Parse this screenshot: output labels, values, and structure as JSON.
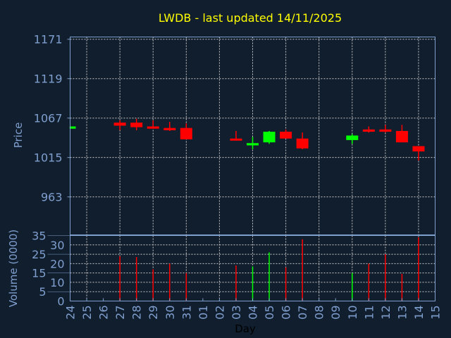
{
  "chart_data": [
    {
      "type": "candlestick",
      "title": "LWDB - last updated 14/11/2025",
      "ylabel": "Price",
      "xlabel": "Day",
      "ylim": [
        913,
        1174
      ],
      "y_ticks": [
        963,
        1015,
        1067,
        1119,
        1171
      ],
      "grid": true,
      "colors": {
        "up": "#00ff00",
        "down": "#ff0000",
        "title": "#ffff00",
        "axis": "#7f9fcf",
        "background": "#111e2e"
      },
      "x_ticks": [
        "24",
        "25",
        "26",
        "27",
        "28",
        "29",
        "30",
        "31",
        "01",
        "02",
        "03",
        "04",
        "05",
        "06",
        "07",
        "08",
        "09",
        "10",
        "11",
        "12",
        "13",
        "14",
        "15"
      ],
      "candles": [
        {
          "day": "24",
          "open": 1053,
          "high": 1056,
          "low": 1053,
          "close": 1056
        },
        {
          "day": "27",
          "open": 1061,
          "high": 1064,
          "low": 1051,
          "close": 1057
        },
        {
          "day": "28",
          "open": 1061,
          "high": 1066,
          "low": 1051,
          "close": 1055
        },
        {
          "day": "29",
          "open": 1056,
          "high": 1064,
          "low": 1053,
          "close": 1053
        },
        {
          "day": "30",
          "open": 1054,
          "high": 1062,
          "low": 1050,
          "close": 1051
        },
        {
          "day": "31",
          "open": 1054,
          "high": 1060,
          "low": 1039,
          "close": 1039
        },
        {
          "day": "03",
          "open": 1040,
          "high": 1050,
          "low": 1038,
          "close": 1038
        },
        {
          "day": "04",
          "open": 1031,
          "high": 1042,
          "low": 1026,
          "close": 1034
        },
        {
          "day": "05",
          "open": 1035,
          "high": 1050,
          "low": 1033,
          "close": 1049
        },
        {
          "day": "06",
          "open": 1049,
          "high": 1052,
          "low": 1040,
          "close": 1040
        },
        {
          "day": "07",
          "open": 1040,
          "high": 1048,
          "low": 1026,
          "close": 1027
        },
        {
          "day": "10",
          "open": 1038,
          "high": 1046,
          "low": 1033,
          "close": 1044
        },
        {
          "day": "11",
          "open": 1052,
          "high": 1056,
          "low": 1048,
          "close": 1049
        },
        {
          "day": "12",
          "open": 1052,
          "high": 1058,
          "low": 1048,
          "close": 1049
        },
        {
          "day": "13",
          "open": 1050,
          "high": 1058,
          "low": 1035,
          "close": 1035
        },
        {
          "day": "14",
          "open": 1030,
          "high": 1030,
          "low": 1011,
          "close": 1023
        }
      ]
    },
    {
      "type": "bar",
      "ylabel": "Volume (0000)",
      "xlabel": "Day",
      "ylim": [
        0,
        35
      ],
      "y_ticks": [
        0,
        5,
        10,
        15,
        20,
        25,
        30,
        35
      ],
      "grid": true,
      "bars": [
        {
          "day": "27",
          "value": 24,
          "dir": "down"
        },
        {
          "day": "28",
          "value": 23.5,
          "dir": "down"
        },
        {
          "day": "29",
          "value": 17,
          "dir": "down"
        },
        {
          "day": "30",
          "value": 20,
          "dir": "down"
        },
        {
          "day": "31",
          "value": 15,
          "dir": "down"
        },
        {
          "day": "03",
          "value": 19,
          "dir": "down"
        },
        {
          "day": "04",
          "value": 18.5,
          "dir": "up"
        },
        {
          "day": "05",
          "value": 26,
          "dir": "up"
        },
        {
          "day": "06",
          "value": 18,
          "dir": "down"
        },
        {
          "day": "07",
          "value": 33,
          "dir": "down"
        },
        {
          "day": "10",
          "value": 15,
          "dir": "up"
        },
        {
          "day": "11",
          "value": 20,
          "dir": "down"
        },
        {
          "day": "12",
          "value": 25,
          "dir": "down"
        },
        {
          "day": "13",
          "value": 14.5,
          "dir": "down"
        },
        {
          "day": "14",
          "value": 34,
          "dir": "down"
        }
      ]
    }
  ]
}
